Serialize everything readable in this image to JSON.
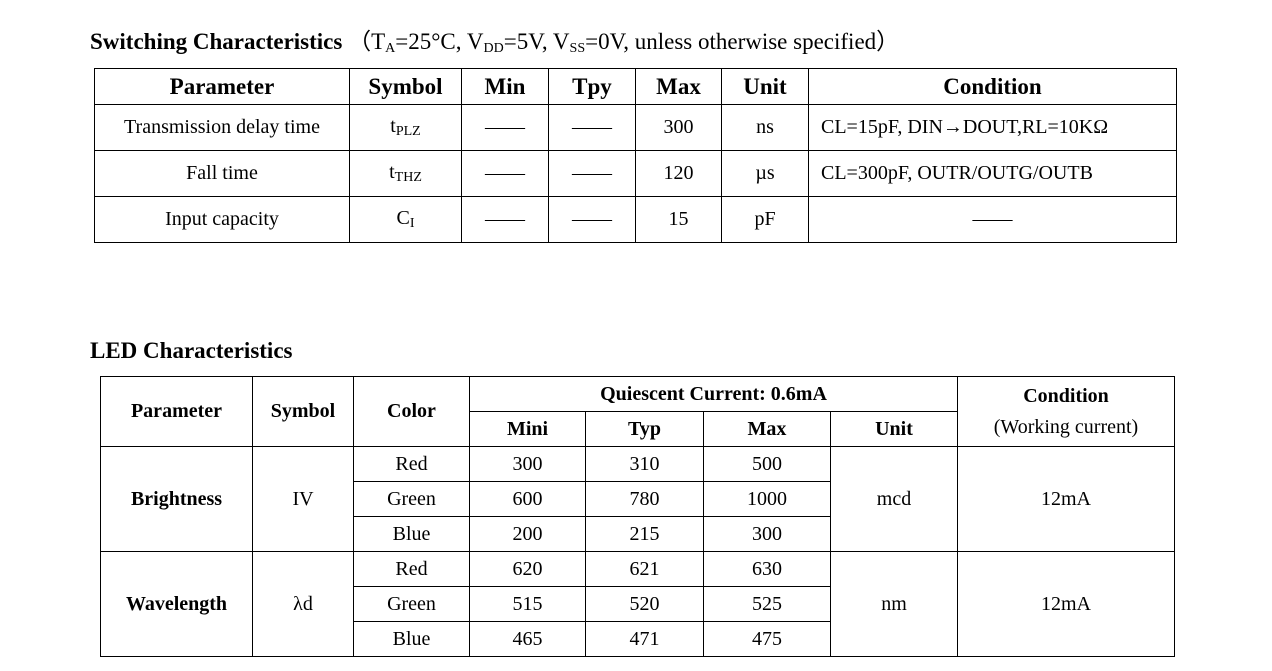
{
  "switching": {
    "title": "Switching Characteristics",
    "conditions": {
      "open": "（T",
      "ta_sub": "A",
      "ta_val": "=25°C, V",
      "vdd_sub": "DD",
      "vdd_val": "=5V, V",
      "vss_sub": "SS",
      "vss_val": "=0V, unless otherwise specified）"
    },
    "headers": [
      "Parameter",
      "Symbol",
      "Min",
      "Tpy",
      "Max",
      "Unit",
      "Condition"
    ],
    "rows": [
      {
        "parameter": "Transmission delay time",
        "symbol": "t",
        "symbol_sub": "PLZ",
        "min": "——",
        "typ": "——",
        "max": "300",
        "unit": "ns",
        "condition": "CL=15pF, DIN→DOUT,RL=10KΩ"
      },
      {
        "parameter": "Fall time",
        "symbol": "t",
        "symbol_sub": "THZ",
        "min": "——",
        "typ": "——",
        "max": "120",
        "unit": "µs",
        "condition": "CL=300pF, OUTR/OUTG/OUTB"
      },
      {
        "parameter": "Input capacity",
        "symbol": "C",
        "symbol_sub": "I",
        "min": "——",
        "typ": "——",
        "max": "15",
        "unit": "pF",
        "condition": "——"
      }
    ]
  },
  "led": {
    "title": "LED Characteristics",
    "headers": {
      "parameter": "Parameter",
      "symbol": "Symbol",
      "color": "Color",
      "group": "Quiescent Current: 0.6mA",
      "min": "Mini",
      "typ": "Typ",
      "max": "Max",
      "unit": "Unit",
      "condition": "Condition",
      "condition_sub": "(Working current)"
    },
    "groups": [
      {
        "parameter": "Brightness",
        "symbol": "IV",
        "unit": "mcd",
        "condition": "12mA",
        "rows": [
          {
            "color": "Red",
            "min": "300",
            "typ": "310",
            "max": "500"
          },
          {
            "color": "Green",
            "min": "600",
            "typ": "780",
            "max": "1000"
          },
          {
            "color": "Blue",
            "min": "200",
            "typ": "215",
            "max": "300"
          }
        ]
      },
      {
        "parameter": "Wavelength",
        "symbol": "λd",
        "unit": "nm",
        "condition": "12mA",
        "rows": [
          {
            "color": "Red",
            "min": "620",
            "typ": "621",
            "max": "630"
          },
          {
            "color": "Green",
            "min": "515",
            "typ": "520",
            "max": "525"
          },
          {
            "color": "Blue",
            "min": "465",
            "typ": "471",
            "max": "475"
          }
        ]
      }
    ]
  }
}
